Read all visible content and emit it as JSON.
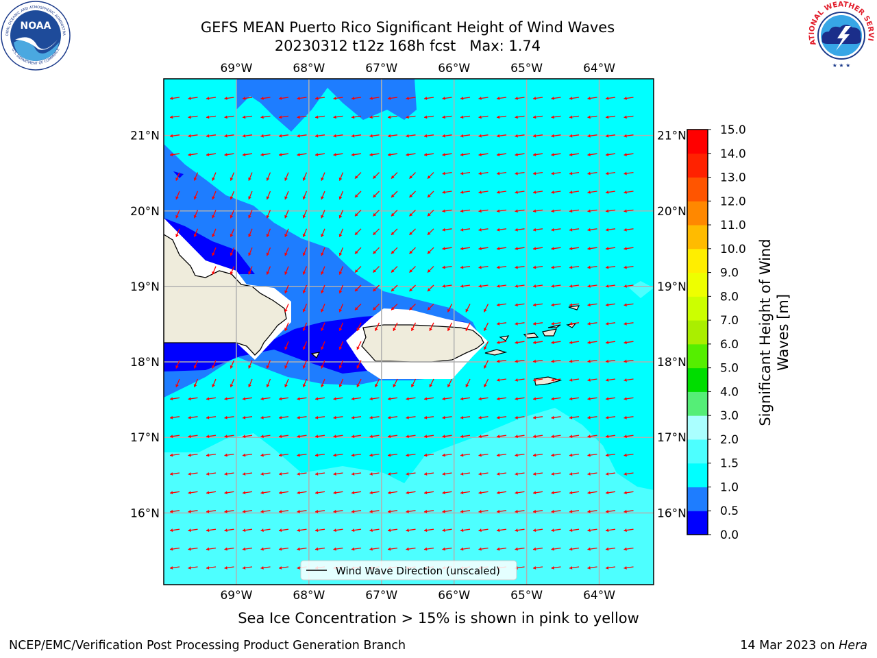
{
  "header": {
    "title_line1": "GEFS MEAN Puerto Rico Significant Height of Wind Waves",
    "title_line2": "20230312 t12z 168h fcst   Max: 1.74"
  },
  "logos": {
    "noaa_text": "NOAA",
    "noaa_ring_text": "NATIONAL OCEANIC AND ATMOSPHERIC ADMINISTRATION",
    "noaa_ring_bottom": "U.S. DEPARTMENT OF COMMERCE",
    "nws_ring_text": "NATIONAL WEATHER SERVICE"
  },
  "map": {
    "lon_ticks": [
      "69°W",
      "68°W",
      "67°W",
      "66°W",
      "65°W",
      "64°W"
    ],
    "lat_ticks": [
      "21°N",
      "20°N",
      "19°N",
      "18°N",
      "17°N",
      "16°N"
    ],
    "lon_values": [
      -69,
      -68,
      -67,
      -66,
      -65,
      -64
    ],
    "lat_values": [
      21,
      20,
      19,
      18,
      17,
      16
    ],
    "extent": {
      "lon_min": -70.0,
      "lon_max": -63.25,
      "lat_min": 15.05,
      "lat_max": 21.75
    },
    "legend_label": "Wind Wave Direction (unscaled)",
    "arrow_color": "#ff0000",
    "land_color": "#efecdc"
  },
  "colorbar": {
    "title": "Significant Height of Wind Waves [m]",
    "tick_labels": [
      "0.0",
      "0.5",
      "1.0",
      "1.5",
      "2.0",
      "3.0",
      "4.0",
      "5.0",
      "6.0",
      "7.0",
      "8.0",
      "9.0",
      "10.0",
      "11.0",
      "12.0",
      "13.0",
      "14.0",
      "15.0"
    ],
    "colors": [
      "#0000ff",
      "#1e7dff",
      "#00ffff",
      "#4dffff",
      "#aaffff",
      "#55ee77",
      "#00dd00",
      "#55ee00",
      "#aaee00",
      "#ccff00",
      "#eeff00",
      "#ffee00",
      "#ffbb00",
      "#ff8800",
      "#ff5500",
      "#ff2200",
      "#ff0000"
    ]
  },
  "footer": {
    "ice_note": "Sea Ice Concentration > 15% is shown in pink to yellow",
    "left": "NCEP/EMC/Verification Post Processing Product Generation Branch",
    "right_prefix": "14 Mar 2023 on ",
    "right_machine": "Hera"
  }
}
